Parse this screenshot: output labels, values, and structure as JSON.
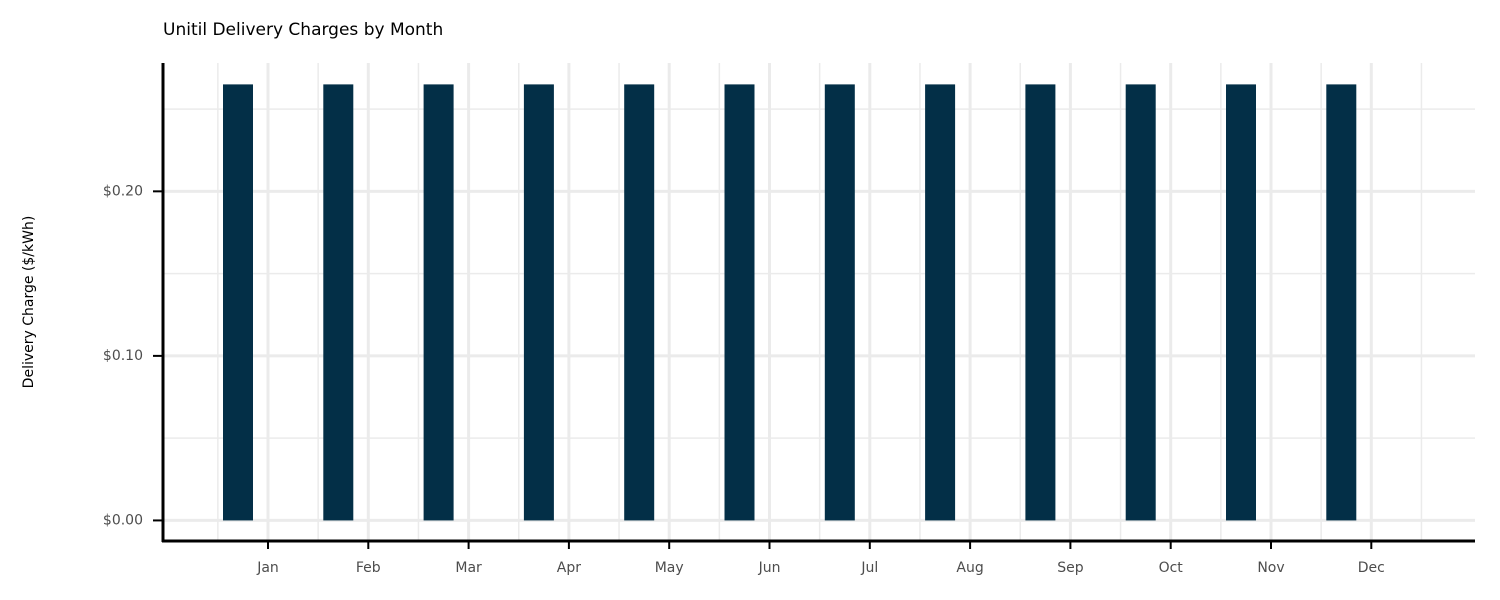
{
  "chart_data": {
    "type": "bar",
    "title": "Unitil Delivery Charges by Month",
    "y_label": "Delivery Charge ($/kWh)",
    "categories": [
      "Jan",
      "Feb",
      "Mar",
      "Apr",
      "May",
      "Jun",
      "Jul",
      "Aug",
      "Sep",
      "Oct",
      "Nov",
      "Dec"
    ],
    "values": [
      0.265,
      0.265,
      0.265,
      0.265,
      0.265,
      0.265,
      0.265,
      0.265,
      0.265,
      0.265,
      0.265,
      0.265
    ],
    "color": "#032f47",
    "ylim": [
      -0.0125,
      0.278
    ],
    "yticks": [
      {
        "value": 0,
        "label": "$0.00"
      },
      {
        "value": 0.1,
        "label": "$0.10"
      },
      {
        "value": 0.2,
        "label": "$0.20"
      }
    ],
    "grid": true
  }
}
